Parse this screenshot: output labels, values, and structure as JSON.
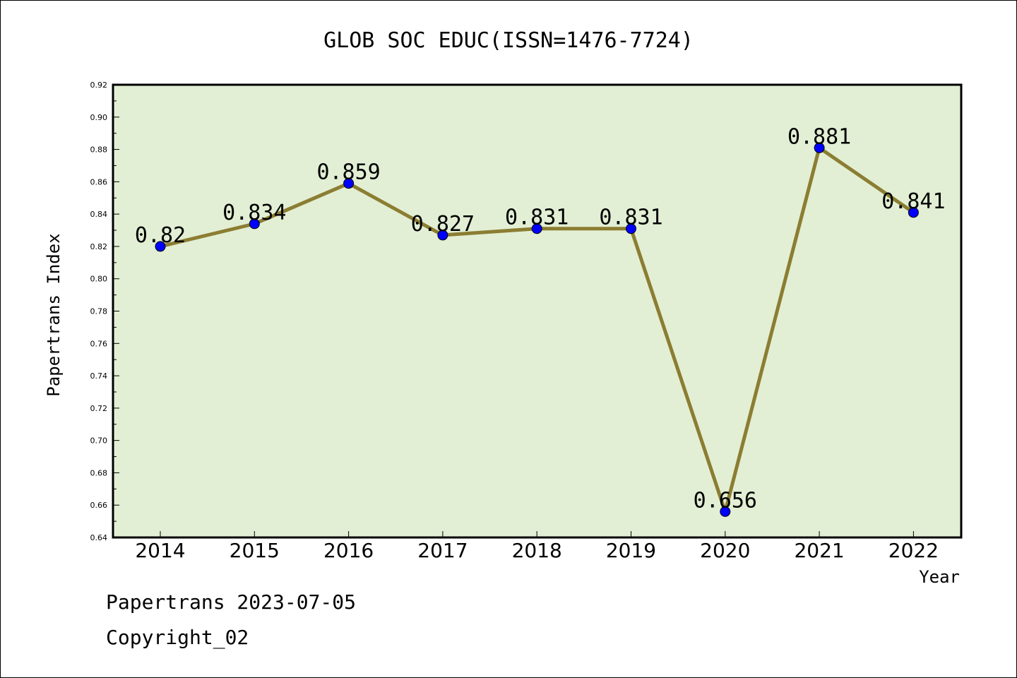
{
  "chart_data": {
    "type": "line",
    "title": "GLOB SOC EDUC(ISSN=1476-7724)",
    "xlabel": "Year",
    "ylabel": "Papertrans Index",
    "categories": [
      "2014",
      "2015",
      "2016",
      "2017",
      "2018",
      "2019",
      "2020",
      "2021",
      "2022"
    ],
    "series": [
      {
        "values": [
          0.82,
          0.834,
          0.859,
          0.827,
          0.831,
          0.831,
          0.656,
          0.881,
          0.841
        ],
        "point_labels": [
          "0.82",
          "0.834",
          "0.859",
          "0.827",
          "0.831",
          "0.831",
          "0.656",
          "0.881",
          "0.841"
        ]
      }
    ],
    "ylim": [
      0.64,
      0.92
    ],
    "ytick_labels": [
      "0.64",
      "0.66",
      "0.68",
      "0.70",
      "0.72",
      "0.74",
      "0.76",
      "0.78",
      "0.80",
      "0.82",
      "0.84",
      "0.86",
      "0.88",
      "0.90",
      "0.92"
    ],
    "grid": false,
    "colors": {
      "plot_background": "#e2efd4",
      "line": "#8b7d32",
      "marker": "#0000ff"
    }
  },
  "footer": {
    "line1": "Papertrans 2023-07-05",
    "line2": "Copyright_02"
  }
}
